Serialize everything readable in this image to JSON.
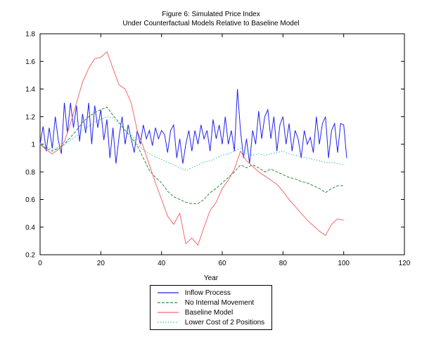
{
  "chart_data": {
    "type": "line",
    "title": "Figure 6: Simulated Price Index",
    "subtitle": "Under Counterfactual Models Relative to Baseline Model",
    "xlabel": "Year",
    "ylabel": "",
    "xlim": [
      0,
      120
    ],
    "ylim": [
      0.2,
      1.8
    ],
    "xticks": [
      "0",
      "20",
      "40",
      "60",
      "80",
      "100",
      "120"
    ],
    "yticks": [
      "0.2",
      "0.4",
      "0.6",
      "0.8",
      "1",
      "1.2",
      "1.4",
      "1.6",
      "1.8"
    ],
    "grid": false,
    "legend_position": "below",
    "series": [
      {
        "name": "Inflow Process",
        "color": "#2222ee",
        "dash": "",
        "x": [
          0,
          1,
          2,
          3,
          4,
          5,
          6,
          7,
          8,
          9,
          10,
          11,
          12,
          13,
          14,
          15,
          16,
          17,
          18,
          19,
          20,
          21,
          22,
          23,
          24,
          25,
          26,
          27,
          28,
          29,
          30,
          31,
          32,
          33,
          34,
          35,
          36,
          37,
          38,
          39,
          40,
          41,
          42,
          43,
          44,
          45,
          46,
          47,
          48,
          49,
          50,
          51,
          52,
          53,
          54,
          55,
          56,
          57,
          58,
          59,
          60,
          61,
          62,
          63,
          64,
          65,
          66,
          67,
          68,
          69,
          70,
          71,
          72,
          73,
          74,
          75,
          76,
          77,
          78,
          79,
          80,
          81,
          82,
          83,
          84,
          85,
          86,
          87,
          88,
          89,
          90,
          91,
          92,
          93,
          94,
          95,
          96,
          97,
          98,
          99,
          100,
          101
        ],
        "y": [
          1.0,
          1.13,
          0.95,
          1.12,
          0.97,
          1.2,
          1.03,
          0.93,
          1.3,
          1.08,
          1.3,
          1.12,
          1.28,
          1.02,
          1.22,
          1.08,
          1.3,
          1.0,
          1.28,
          1.12,
          1.25,
          1.03,
          1.18,
          0.9,
          1.12,
          0.86,
          1.05,
          1.2,
          1.0,
          1.14,
          1.04,
          0.94,
          1.1,
          1.0,
          1.14,
          1.04,
          1.1,
          0.99,
          1.12,
          1.04,
          1.1,
          1.07,
          0.94,
          1.1,
          1.14,
          0.9,
          1.04,
          0.86,
          1.0,
          1.1,
          0.95,
          1.1,
          1.0,
          1.14,
          1.04,
          1.1,
          0.95,
          1.18,
          1.04,
          1.14,
          1.0,
          1.2,
          1.0,
          1.1,
          0.95,
          1.4,
          1.1,
          0.9,
          1.04,
          0.86,
          1.1,
          1.0,
          1.24,
          1.04,
          1.2,
          1.25,
          1.04,
          1.2,
          0.95,
          1.14,
          1.2,
          1.0,
          1.15,
          0.95,
          1.1,
          1.04,
          0.9,
          1.1,
          1.0,
          1.05,
          0.94,
          1.2,
          1.0,
          1.15,
          1.2,
          0.9,
          1.1,
          1.15,
          0.94,
          1.15,
          1.14,
          0.9
        ]
      },
      {
        "name": "No Internal Movement",
        "color": "#2e8b3d",
        "dash": "4 2",
        "x": [
          0,
          2,
          4,
          6,
          8,
          10,
          12,
          14,
          16,
          18,
          20,
          22,
          24,
          26,
          28,
          30,
          32,
          34,
          36,
          38,
          40,
          42,
          44,
          46,
          48,
          50,
          52,
          54,
          56,
          58,
          60,
          62,
          64,
          66,
          68,
          70,
          72,
          74,
          76,
          78,
          80,
          82,
          84,
          86,
          88,
          90,
          92,
          94,
          96,
          98,
          100
        ],
        "y": [
          1.0,
          0.97,
          0.95,
          0.97,
          1.0,
          1.05,
          1.1,
          1.16,
          1.2,
          1.23,
          1.25,
          1.27,
          1.21,
          1.16,
          1.1,
          1.05,
          0.99,
          0.9,
          0.81,
          0.76,
          0.72,
          0.66,
          0.62,
          0.6,
          0.58,
          0.57,
          0.57,
          0.6,
          0.65,
          0.68,
          0.72,
          0.76,
          0.8,
          0.85,
          0.83,
          0.85,
          0.83,
          0.8,
          0.82,
          0.8,
          0.78,
          0.76,
          0.75,
          0.73,
          0.72,
          0.7,
          0.68,
          0.65,
          0.68,
          0.7,
          0.7
        ]
      },
      {
        "name": "Baseline Model",
        "color": "#f26a6a",
        "dash": "",
        "x": [
          0,
          2,
          4,
          6,
          8,
          10,
          12,
          14,
          16,
          18,
          20,
          22,
          24,
          26,
          28,
          30,
          32,
          34,
          36,
          38,
          40,
          42,
          44,
          46,
          48,
          50,
          52,
          54,
          56,
          58,
          60,
          62,
          64,
          66,
          68,
          70,
          72,
          74,
          76,
          78,
          80,
          82,
          84,
          86,
          88,
          90,
          92,
          94,
          96,
          98,
          100
        ],
        "y": [
          1.0,
          0.96,
          0.93,
          0.96,
          1.02,
          1.15,
          1.3,
          1.45,
          1.55,
          1.62,
          1.63,
          1.67,
          1.55,
          1.43,
          1.4,
          1.3,
          1.1,
          0.98,
          0.85,
          0.72,
          0.6,
          0.48,
          0.42,
          0.5,
          0.28,
          0.32,
          0.27,
          0.4,
          0.52,
          0.58,
          0.68,
          0.74,
          0.82,
          0.95,
          0.88,
          0.84,
          0.8,
          0.77,
          0.74,
          0.71,
          0.66,
          0.6,
          0.55,
          0.5,
          0.45,
          0.41,
          0.37,
          0.34,
          0.42,
          0.46,
          0.45
        ]
      },
      {
        "name": "Lower Cost of 2 Positions",
        "color": "#35bdb5",
        "dash": "1.5 2.2",
        "x": [
          0,
          2,
          4,
          6,
          8,
          10,
          12,
          14,
          16,
          18,
          20,
          22,
          24,
          26,
          28,
          30,
          32,
          34,
          36,
          38,
          40,
          42,
          44,
          46,
          48,
          50,
          52,
          54,
          56,
          58,
          60,
          62,
          64,
          66,
          68,
          70,
          72,
          74,
          76,
          78,
          80,
          82,
          84,
          86,
          88,
          90,
          92,
          94,
          96,
          98,
          100
        ],
        "y": [
          1.0,
          0.98,
          0.96,
          0.98,
          1.0,
          1.03,
          1.06,
          1.1,
          1.13,
          1.16,
          1.18,
          1.2,
          1.19,
          1.15,
          1.1,
          1.07,
          1.0,
          0.96,
          0.93,
          0.91,
          0.89,
          0.87,
          0.85,
          0.83,
          0.81,
          0.83,
          0.85,
          0.87,
          0.88,
          0.9,
          0.92,
          0.93,
          0.95,
          0.97,
          0.93,
          0.92,
          0.93,
          0.92,
          0.93,
          0.94,
          0.95,
          0.93,
          0.92,
          0.91,
          0.9,
          0.89,
          0.88,
          0.87,
          0.87,
          0.86,
          0.85
        ]
      }
    ]
  }
}
